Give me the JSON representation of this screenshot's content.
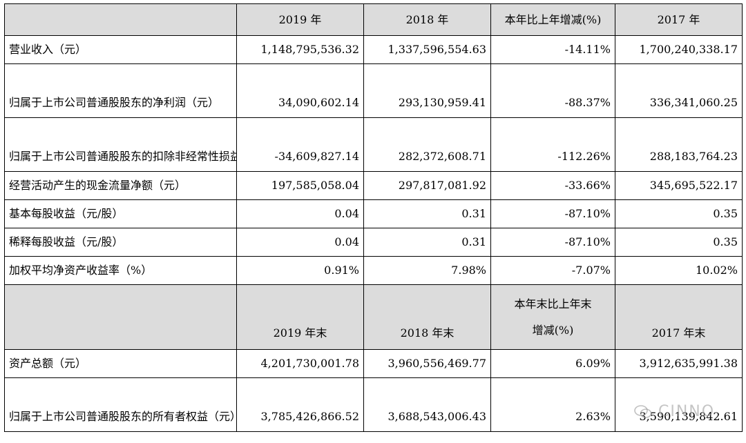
{
  "table": {
    "header1": [
      "",
      "2019 年",
      "2018 年",
      "本年比上年增减(%)",
      "2017 年"
    ],
    "rows1": [
      {
        "label": "营业收入（元）",
        "v2019": "1,148,795,536.32",
        "v2018": "1,337,596,554.63",
        "chg": "-14.11%",
        "v2017": "1,700,240,338.17"
      },
      {
        "label": "归属于上市公司普通股股东的净利润（元）",
        "v2019": "34,090,602.14",
        "v2018": "293,130,959.41",
        "chg": "-88.37%",
        "v2017": "336,341,060.25"
      },
      {
        "label": "归属于上市公司普通股股东的扣除非经常性损益后的净利润（元）",
        "v2019": "-34,609,827.14",
        "v2018": "282,372,608.71",
        "chg": "-112.26%",
        "v2017": "288,183,764.23"
      },
      {
        "label": "经营活动产生的现金流量净额（元）",
        "v2019": "197,585,058.04",
        "v2018": "297,817,081.92",
        "chg": "-33.66%",
        "v2017": "345,695,522.17"
      },
      {
        "label": "基本每股收益（元/股）",
        "v2019": "0.04",
        "v2018": "0.31",
        "chg": "-87.10%",
        "v2017": "0.35"
      },
      {
        "label": "稀释每股收益（元/股）",
        "v2019": "0.04",
        "v2018": "0.31",
        "chg": "-87.10%",
        "v2017": "0.35"
      },
      {
        "label": "加权平均净资产收益率（%）",
        "v2019": "0.91%",
        "v2018": "7.98%",
        "chg": "-7.07%",
        "v2017": "10.02%"
      }
    ],
    "header2": {
      "c2019": "2019 年末",
      "c2018": "2018 年末",
      "chg_line1": "本年末比上年末",
      "chg_line2": "增减(%)",
      "c2017": "2017 年末"
    },
    "rows2": [
      {
        "label": "资产总额（元）",
        "v2019": "4,201,730,001.78",
        "v2018": "3,960,556,469.77",
        "chg": "6.09%",
        "v2017": "3,912,635,991.38"
      },
      {
        "label": "归属于上市公司普通股股东的所有者权益（元）",
        "v2019": "3,785,426,866.52",
        "v2018": "3,688,543,006.43",
        "chg": "2.63%",
        "v2017": "3,590,139,842.61"
      }
    ]
  },
  "watermark": {
    "text": "CINNO",
    "icon": "wechat-icon"
  }
}
